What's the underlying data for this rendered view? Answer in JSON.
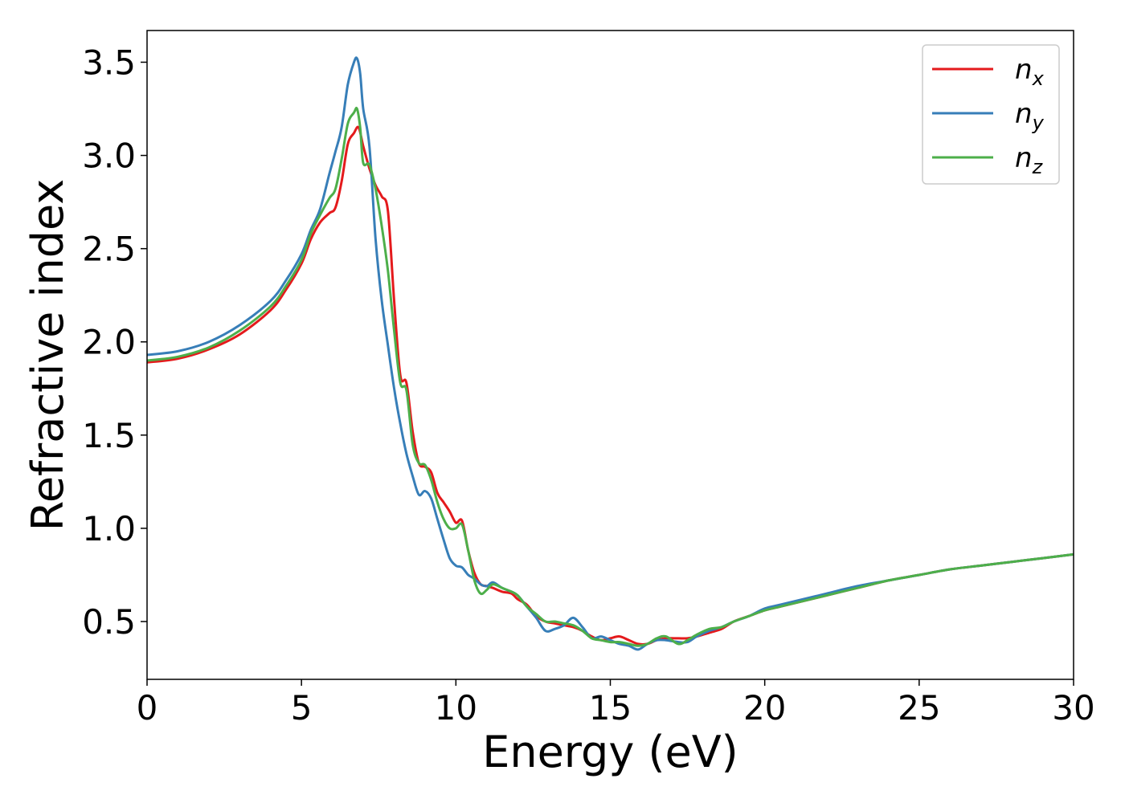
{
  "chart_data": {
    "type": "line",
    "xlabel": "Energy (eV)",
    "ylabel": "Refractive index",
    "xlim": [
      0,
      30
    ],
    "ylim": [
      0.19,
      3.67
    ],
    "xticks": [
      "0",
      "5",
      "10",
      "15",
      "20",
      "25",
      "30"
    ],
    "yticks": [
      "0.5",
      "1.0",
      "1.5",
      "2.0",
      "2.5",
      "3.0",
      "3.5"
    ],
    "grid": false,
    "legend_position": "top-right",
    "series": [
      {
        "name": "n_x",
        "label_main": "n",
        "label_sub": "x",
        "color": "#e41a1c",
        "points": [
          [
            0,
            1.89
          ],
          [
            1,
            1.91
          ],
          [
            2,
            1.96
          ],
          [
            3,
            2.04
          ],
          [
            4,
            2.17
          ],
          [
            4.5,
            2.28
          ],
          [
            5,
            2.42
          ],
          [
            5.3,
            2.55
          ],
          [
            5.6,
            2.64
          ],
          [
            5.9,
            2.69
          ],
          [
            6.1,
            2.72
          ],
          [
            6.3,
            2.86
          ],
          [
            6.5,
            3.06
          ],
          [
            6.7,
            3.12
          ],
          [
            6.85,
            3.15
          ],
          [
            7.0,
            3.05
          ],
          [
            7.2,
            2.93
          ],
          [
            7.4,
            2.84
          ],
          [
            7.6,
            2.78
          ],
          [
            7.8,
            2.7
          ],
          [
            8.0,
            2.22
          ],
          [
            8.2,
            1.82
          ],
          [
            8.4,
            1.78
          ],
          [
            8.6,
            1.52
          ],
          [
            8.8,
            1.35
          ],
          [
            9.0,
            1.33
          ],
          [
            9.2,
            1.3
          ],
          [
            9.4,
            1.19
          ],
          [
            9.6,
            1.14
          ],
          [
            9.8,
            1.09
          ],
          [
            10.0,
            1.03
          ],
          [
            10.2,
            1.04
          ],
          [
            10.4,
            0.88
          ],
          [
            10.6,
            0.76
          ],
          [
            10.8,
            0.7
          ],
          [
            11.0,
            0.69
          ],
          [
            11.2,
            0.68
          ],
          [
            11.5,
            0.66
          ],
          [
            11.8,
            0.65
          ],
          [
            12.0,
            0.62
          ],
          [
            12.3,
            0.59
          ],
          [
            12.6,
            0.53
          ],
          [
            12.9,
            0.5
          ],
          [
            13.2,
            0.49
          ],
          [
            13.5,
            0.48
          ],
          [
            13.8,
            0.47
          ],
          [
            14.1,
            0.45
          ],
          [
            14.4,
            0.42
          ],
          [
            14.7,
            0.4
          ],
          [
            15.0,
            0.41
          ],
          [
            15.3,
            0.42
          ],
          [
            15.6,
            0.4
          ],
          [
            15.9,
            0.38
          ],
          [
            16.2,
            0.38
          ],
          [
            16.5,
            0.4
          ],
          [
            16.8,
            0.41
          ],
          [
            17.2,
            0.41
          ],
          [
            17.5,
            0.41
          ],
          [
            17.8,
            0.42
          ],
          [
            18.2,
            0.44
          ],
          [
            18.6,
            0.46
          ],
          [
            19.0,
            0.5
          ],
          [
            19.5,
            0.53
          ],
          [
            20.0,
            0.56
          ],
          [
            20.5,
            0.58
          ],
          [
            21.0,
            0.6
          ],
          [
            22.0,
            0.64
          ],
          [
            23.0,
            0.68
          ],
          [
            24.0,
            0.72
          ],
          [
            25.0,
            0.75
          ],
          [
            26.0,
            0.78
          ],
          [
            27.0,
            0.8
          ],
          [
            28.0,
            0.82
          ],
          [
            29.0,
            0.84
          ],
          [
            30.0,
            0.86
          ]
        ]
      },
      {
        "name": "n_y",
        "label_main": "n",
        "label_sub": "y",
        "color": "#377eb8",
        "points": [
          [
            0,
            1.93
          ],
          [
            1,
            1.95
          ],
          [
            2,
            2.0
          ],
          [
            3,
            2.09
          ],
          [
            4,
            2.22
          ],
          [
            4.5,
            2.33
          ],
          [
            5,
            2.47
          ],
          [
            5.3,
            2.6
          ],
          [
            5.6,
            2.71
          ],
          [
            5.9,
            2.9
          ],
          [
            6.1,
            3.02
          ],
          [
            6.3,
            3.15
          ],
          [
            6.5,
            3.38
          ],
          [
            6.7,
            3.5
          ],
          [
            6.8,
            3.52
          ],
          [
            6.9,
            3.44
          ],
          [
            7.0,
            3.25
          ],
          [
            7.2,
            3.05
          ],
          [
            7.4,
            2.55
          ],
          [
            7.6,
            2.22
          ],
          [
            7.8,
            1.98
          ],
          [
            8.0,
            1.75
          ],
          [
            8.2,
            1.56
          ],
          [
            8.4,
            1.4
          ],
          [
            8.6,
            1.28
          ],
          [
            8.8,
            1.18
          ],
          [
            9.0,
            1.2
          ],
          [
            9.2,
            1.16
          ],
          [
            9.4,
            1.05
          ],
          [
            9.6,
            0.94
          ],
          [
            9.8,
            0.84
          ],
          [
            10.0,
            0.8
          ],
          [
            10.2,
            0.79
          ],
          [
            10.4,
            0.75
          ],
          [
            10.6,
            0.73
          ],
          [
            10.8,
            0.7
          ],
          [
            11.0,
            0.69
          ],
          [
            11.2,
            0.71
          ],
          [
            11.5,
            0.68
          ],
          [
            11.8,
            0.66
          ],
          [
            12.0,
            0.64
          ],
          [
            12.3,
            0.58
          ],
          [
            12.6,
            0.52
          ],
          [
            12.9,
            0.45
          ],
          [
            13.2,
            0.46
          ],
          [
            13.5,
            0.48
          ],
          [
            13.8,
            0.52
          ],
          [
            14.1,
            0.47
          ],
          [
            14.4,
            0.41
          ],
          [
            14.7,
            0.42
          ],
          [
            15.0,
            0.4
          ],
          [
            15.3,
            0.38
          ],
          [
            15.6,
            0.37
          ],
          [
            15.9,
            0.35
          ],
          [
            16.2,
            0.38
          ],
          [
            16.5,
            0.4
          ],
          [
            16.8,
            0.4
          ],
          [
            17.2,
            0.39
          ],
          [
            17.5,
            0.39
          ],
          [
            17.8,
            0.42
          ],
          [
            18.2,
            0.45
          ],
          [
            18.6,
            0.47
          ],
          [
            19.0,
            0.5
          ],
          [
            19.5,
            0.53
          ],
          [
            20.0,
            0.57
          ],
          [
            20.5,
            0.59
          ],
          [
            21.0,
            0.61
          ],
          [
            22.0,
            0.65
          ],
          [
            23.0,
            0.69
          ],
          [
            24.0,
            0.72
          ],
          [
            25.0,
            0.75
          ],
          [
            26.0,
            0.78
          ],
          [
            27.0,
            0.8
          ],
          [
            28.0,
            0.82
          ],
          [
            29.0,
            0.84
          ],
          [
            30.0,
            0.86
          ]
        ]
      },
      {
        "name": "n_z",
        "label_main": "n",
        "label_sub": "z",
        "color": "#4daf4a",
        "points": [
          [
            0,
            1.9
          ],
          [
            1,
            1.92
          ],
          [
            2,
            1.97
          ],
          [
            3,
            2.06
          ],
          [
            4,
            2.19
          ],
          [
            4.5,
            2.3
          ],
          [
            5,
            2.44
          ],
          [
            5.3,
            2.58
          ],
          [
            5.6,
            2.68
          ],
          [
            5.9,
            2.77
          ],
          [
            6.1,
            2.82
          ],
          [
            6.3,
            2.98
          ],
          [
            6.5,
            3.17
          ],
          [
            6.7,
            3.23
          ],
          [
            6.8,
            3.25
          ],
          [
            6.9,
            3.15
          ],
          [
            7.0,
            2.96
          ],
          [
            7.2,
            2.95
          ],
          [
            7.4,
            2.82
          ],
          [
            7.6,
            2.62
          ],
          [
            7.8,
            2.38
          ],
          [
            8.0,
            2.06
          ],
          [
            8.2,
            1.78
          ],
          [
            8.4,
            1.74
          ],
          [
            8.6,
            1.45
          ],
          [
            8.8,
            1.35
          ],
          [
            9.0,
            1.34
          ],
          [
            9.2,
            1.26
          ],
          [
            9.4,
            1.14
          ],
          [
            9.6,
            1.05
          ],
          [
            9.8,
            1.0
          ],
          [
            10.0,
            1.0
          ],
          [
            10.2,
            1.02
          ],
          [
            10.4,
            0.88
          ],
          [
            10.6,
            0.72
          ],
          [
            10.8,
            0.65
          ],
          [
            11.0,
            0.67
          ],
          [
            11.2,
            0.7
          ],
          [
            11.5,
            0.68
          ],
          [
            11.8,
            0.66
          ],
          [
            12.0,
            0.64
          ],
          [
            12.3,
            0.58
          ],
          [
            12.6,
            0.54
          ],
          [
            12.9,
            0.5
          ],
          [
            13.2,
            0.5
          ],
          [
            13.5,
            0.49
          ],
          [
            13.8,
            0.48
          ],
          [
            14.1,
            0.45
          ],
          [
            14.4,
            0.41
          ],
          [
            14.7,
            0.4
          ],
          [
            15.0,
            0.39
          ],
          [
            15.3,
            0.39
          ],
          [
            15.6,
            0.38
          ],
          [
            15.9,
            0.37
          ],
          [
            16.2,
            0.38
          ],
          [
            16.5,
            0.41
          ],
          [
            16.8,
            0.42
          ],
          [
            17.2,
            0.38
          ],
          [
            17.5,
            0.4
          ],
          [
            17.8,
            0.43
          ],
          [
            18.2,
            0.46
          ],
          [
            18.6,
            0.47
          ],
          [
            19.0,
            0.5
          ],
          [
            19.5,
            0.53
          ],
          [
            20.0,
            0.56
          ],
          [
            20.5,
            0.58
          ],
          [
            21.0,
            0.6
          ],
          [
            22.0,
            0.64
          ],
          [
            23.0,
            0.68
          ],
          [
            24.0,
            0.72
          ],
          [
            25.0,
            0.75
          ],
          [
            26.0,
            0.78
          ],
          [
            27.0,
            0.8
          ],
          [
            28.0,
            0.82
          ],
          [
            29.0,
            0.84
          ],
          [
            30.0,
            0.86
          ]
        ]
      }
    ]
  }
}
